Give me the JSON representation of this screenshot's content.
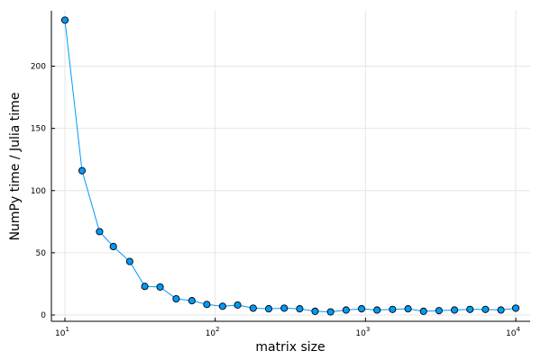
{
  "chart_data": {
    "type": "line",
    "title": "",
    "xlabel": "matrix size",
    "ylabel": "NumPy time / Julia time",
    "xscale": "log10",
    "xlim": [
      10,
      10000
    ],
    "ylim": [
      0,
      238
    ],
    "grid": true,
    "legend": "none",
    "x_ticks": [
      10,
      100,
      1000,
      10000
    ],
    "x_tick_labels": [
      {
        "base": "10",
        "exp": "1"
      },
      {
        "base": "10",
        "exp": "2"
      },
      {
        "base": "10",
        "exp": "3"
      },
      {
        "base": "10",
        "exp": "4"
      }
    ],
    "y_ticks": [
      0,
      50,
      100,
      150,
      200
    ],
    "y_tick_labels": [
      "0",
      "50",
      "100",
      "150",
      "200"
    ],
    "series": [
      {
        "color": "#009AFA",
        "marker_color": "#009AFA",
        "points": [
          {
            "x": 10,
            "y": 237
          },
          {
            "x": 13,
            "y": 116
          },
          {
            "x": 17,
            "y": 67
          },
          {
            "x": 21,
            "y": 55
          },
          {
            "x": 27,
            "y": 43
          },
          {
            "x": 34,
            "y": 23
          },
          {
            "x": 43,
            "y": 22.5
          },
          {
            "x": 55,
            "y": 13
          },
          {
            "x": 70,
            "y": 11.5
          },
          {
            "x": 88,
            "y": 8.5
          },
          {
            "x": 112,
            "y": 7
          },
          {
            "x": 141,
            "y": 8
          },
          {
            "x": 179,
            "y": 5.5
          },
          {
            "x": 227,
            "y": 5
          },
          {
            "x": 288,
            "y": 5.5
          },
          {
            "x": 365,
            "y": 5
          },
          {
            "x": 462,
            "y": 3
          },
          {
            "x": 586,
            "y": 2.5
          },
          {
            "x": 743,
            "y": 4
          },
          {
            "x": 942,
            "y": 5
          },
          {
            "x": 1194,
            "y": 4
          },
          {
            "x": 1514,
            "y": 4.5
          },
          {
            "x": 1920,
            "y": 5
          },
          {
            "x": 2433,
            "y": 3
          },
          {
            "x": 3085,
            "y": 3.5
          },
          {
            "x": 3911,
            "y": 4
          },
          {
            "x": 4958,
            "y": 4.5
          },
          {
            "x": 6286,
            "y": 4.5
          },
          {
            "x": 7969,
            "y": 4
          },
          {
            "x": 10000,
            "y": 5.5
          }
        ]
      }
    ]
  }
}
